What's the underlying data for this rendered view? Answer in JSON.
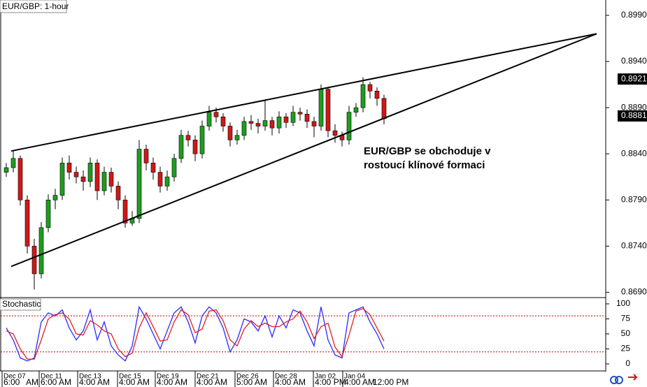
{
  "chart_data": [
    {
      "type": "candlestick",
      "title": "EUR/GBP: 1-hour",
      "open": [
        0.882,
        0.8825,
        0.8835,
        0.879,
        0.874,
        0.871,
        0.876,
        0.879,
        0.8795,
        0.883,
        0.882,
        0.8815,
        0.881,
        0.883,
        0.88,
        0.882,
        0.8805,
        0.879,
        0.8765,
        0.877,
        0.8845,
        0.883,
        0.882,
        0.8805,
        0.8815,
        0.8835,
        0.886,
        0.8855,
        0.884,
        0.887,
        0.8885,
        0.888,
        0.887,
        0.8855,
        0.886,
        0.8875,
        0.8873,
        0.887,
        0.8876,
        0.8868,
        0.888,
        0.8874,
        0.8885,
        0.8883,
        0.8875,
        0.887,
        0.891,
        0.8865,
        0.886,
        0.8855,
        0.8885,
        0.889,
        0.8915,
        0.8908,
        0.89
      ],
      "high": [
        0.883,
        0.8843,
        0.8838,
        0.8795,
        0.8748,
        0.8766,
        0.8796,
        0.8802,
        0.8836,
        0.8838,
        0.8826,
        0.8822,
        0.8836,
        0.8834,
        0.8826,
        0.8825,
        0.881,
        0.8795,
        0.8778,
        0.8855,
        0.885,
        0.8836,
        0.8826,
        0.8822,
        0.884,
        0.8866,
        0.8865,
        0.886,
        0.8876,
        0.8892,
        0.889,
        0.8884,
        0.8874,
        0.8866,
        0.888,
        0.8882,
        0.8878,
        0.8898,
        0.888,
        0.8886,
        0.8884,
        0.8892,
        0.889,
        0.8888,
        0.888,
        0.8915,
        0.8912,
        0.8872,
        0.8864,
        0.8892,
        0.8895,
        0.8923,
        0.8918,
        0.8912,
        0.8904
      ],
      "low": [
        0.8815,
        0.882,
        0.8784,
        0.8732,
        0.8693,
        0.8705,
        0.8755,
        0.878,
        0.879,
        0.8812,
        0.8808,
        0.88,
        0.8804,
        0.879,
        0.8795,
        0.8798,
        0.878,
        0.876,
        0.8762,
        0.8765,
        0.8822,
        0.8812,
        0.8798,
        0.88,
        0.881,
        0.883,
        0.8848,
        0.8832,
        0.8835,
        0.8865,
        0.8874,
        0.8864,
        0.8848,
        0.885,
        0.8855,
        0.8866,
        0.8862,
        0.8865,
        0.886,
        0.8862,
        0.8868,
        0.887,
        0.8876,
        0.8868,
        0.8858,
        0.8865,
        0.8858,
        0.8852,
        0.8848,
        0.885,
        0.888,
        0.8885,
        0.89,
        0.8892,
        0.8872
      ],
      "close": [
        0.8825,
        0.8835,
        0.879,
        0.874,
        0.871,
        0.876,
        0.879,
        0.8795,
        0.883,
        0.882,
        0.8815,
        0.881,
        0.883,
        0.88,
        0.882,
        0.8805,
        0.879,
        0.8765,
        0.877,
        0.8845,
        0.883,
        0.882,
        0.8805,
        0.8815,
        0.8835,
        0.886,
        0.8855,
        0.884,
        0.887,
        0.8885,
        0.888,
        0.887,
        0.8855,
        0.886,
        0.8875,
        0.8873,
        0.887,
        0.8876,
        0.8868,
        0.888,
        0.8874,
        0.8885,
        0.8883,
        0.8875,
        0.887,
        0.891,
        0.8865,
        0.886,
        0.8855,
        0.8885,
        0.889,
        0.8915,
        0.8908,
        0.89,
        0.8878
      ],
      "up_color": "#1e9e1e",
      "down_color": "#d01818",
      "xlim": [
        -0.8,
        85.7
      ],
      "ylim": [
        0.8685,
        0.90066
      ],
      "yticks": [
        {
          "value": 0.899,
          "label": "0.8990"
        },
        {
          "value": 0.894,
          "label": "0.8940"
        },
        {
          "value": 0.889,
          "label": "0.8890"
        },
        {
          "value": 0.884,
          "label": "0.8840"
        },
        {
          "value": 0.879,
          "label": "0.8790"
        },
        {
          "value": 0.874,
          "label": "0.8740"
        },
        {
          "value": 0.869,
          "label": "0.8690"
        }
      ],
      "price_markers": [
        {
          "value": 0.8921,
          "label": "0.8921"
        },
        {
          "value": 0.8881,
          "label": "0.8881"
        }
      ],
      "trendlines": [
        {
          "x": [
            0.7,
            84.4
          ],
          "y": [
            0.8843,
            0.897
          ]
        },
        {
          "x": [
            0.7,
            84.4
          ],
          "y": [
            0.8718,
            0.897
          ]
        }
      ],
      "annotation": [
        "EUR/GBP se obchoduje v",
        "rostoucí klínové formaci"
      ],
      "xticks": [
        {
          "value": -0.6,
          "label": "Dec 07"
        },
        {
          "value": 4.7,
          "label": "Dec 11"
        },
        {
          "value": 10.2,
          "label": "Dec 13"
        },
        {
          "value": 15.9,
          "label": "Dec 15"
        },
        {
          "value": 21.3,
          "label": "Dec 19"
        },
        {
          "value": 27,
          "label": "Dec 21"
        },
        {
          "value": 32.7,
          "label": "Dec 26"
        },
        {
          "value": 38.2,
          "label": "Dec 28"
        },
        {
          "value": 43.9,
          "label": "Jan 02"
        },
        {
          "value": 48.1,
          "label": "Jan 04"
        }
      ],
      "xticks_time": [
        {
          "value": -0.6,
          "label": "6:00"
        },
        {
          "value": 2.6,
          "label": "AM"
        },
        {
          "value": 4.7,
          "label": "6:00 AM"
        },
        {
          "value": 10.2,
          "label": "4:00 AM"
        },
        {
          "value": 15.9,
          "label": "4:00 AM"
        },
        {
          "value": 21.3,
          "label": "4:00 AM"
        },
        {
          "value": 27,
          "label": "4:00 AM"
        },
        {
          "value": 32.7,
          "label": "5:00 AM"
        },
        {
          "value": 38.2,
          "label": "4:00 AM"
        },
        {
          "value": 43.9,
          "label": "4:00 PM"
        },
        {
          "value": 48.1,
          "label": "4:00 AM"
        },
        {
          "value": 52.2,
          "label": "12:00 PM"
        }
      ]
    },
    {
      "type": "line",
      "title": "Stochastic",
      "xlim": [
        -0.8,
        85.7
      ],
      "ylim": [
        -10.5,
        108.1
      ],
      "yticks": [
        0,
        25,
        50,
        75,
        100
      ],
      "levels": [
        80,
        20
      ],
      "series": [
        {
          "color": "#2a2aff",
          "values": [
            60,
            40,
            10,
            5,
            10,
            70,
            85,
            80,
            90,
            60,
            40,
            55,
            90,
            40,
            70,
            30,
            15,
            5,
            30,
            95,
            75,
            50,
            25,
            55,
            85,
            95,
            70,
            35,
            80,
            95,
            85,
            60,
            20,
            40,
            75,
            70,
            55,
            80,
            45,
            80,
            60,
            90,
            85,
            55,
            30,
            95,
            40,
            15,
            10,
            85,
            90,
            95,
            70,
            50,
            25
          ]
        },
        {
          "color": "#e02020",
          "values": [
            55,
            50,
            25,
            8,
            8,
            40,
            75,
            82,
            85,
            75,
            50,
            48,
            72,
            65,
            55,
            50,
            25,
            12,
            18,
            60,
            85,
            62,
            38,
            40,
            70,
            90,
            82,
            52,
            58,
            88,
            90,
            72,
            40,
            30,
            58,
            72,
            62,
            68,
            62,
            62,
            70,
            75,
            88,
            70,
            42,
            62,
            68,
            28,
            12,
            48,
            88,
            92,
            82,
            60,
            38
          ]
        }
      ]
    }
  ]
}
